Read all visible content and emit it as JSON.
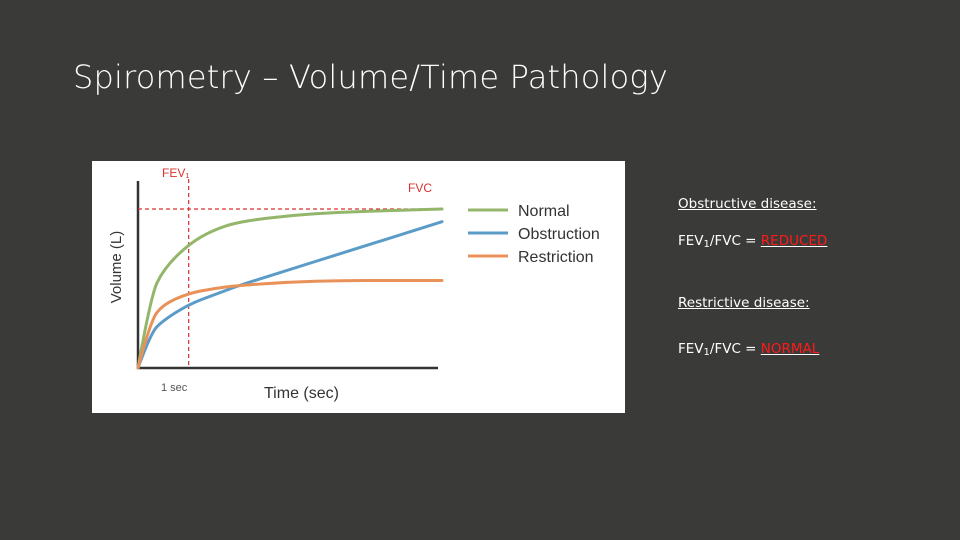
{
  "slide": {
    "title": "Spirometry – Volume/Time Pathology"
  },
  "notes": {
    "obstructive_heading": "Obstructive disease:",
    "obstructive_ratio_prefix": "FEV",
    "obstructive_ratio_sub": "1",
    "obstructive_ratio_mid": "/FVC = ",
    "obstructive_ratio_value": "REDUCED",
    "restrictive_heading": "Restrictive disease:",
    "restrictive_ratio_prefix": "FEV",
    "restrictive_ratio_sub": "1",
    "restrictive_ratio_mid": "/FVC = ",
    "restrictive_ratio_value": "NORMAL",
    "highlight_color": "#ff1a1a"
  },
  "chart_data": {
    "type": "line",
    "xlabel": "Time (sec)",
    "ylabel": "Volume (L)",
    "x_tick_label": "1 sec",
    "fev_label": "FEV₁",
    "fvc_label": "FVC",
    "ylim": [
      0,
      1
    ],
    "xlim": [
      0,
      6
    ],
    "fev1_time": 1,
    "fvc_level": 1,
    "series": [
      {
        "name": "Normal",
        "color": "#93b66a",
        "x": [
          0,
          0.25,
          0.5,
          1,
          1.5,
          2,
          3,
          4,
          5,
          6
        ],
        "y": [
          0,
          0.45,
          0.62,
          0.78,
          0.87,
          0.92,
          0.96,
          0.98,
          0.99,
          1.0
        ]
      },
      {
        "name": "Obstruction",
        "color": "#5b9bc8",
        "x": [
          0,
          0.25,
          0.5,
          1,
          1.5,
          2,
          3,
          4,
          5,
          6
        ],
        "y": [
          0,
          0.22,
          0.3,
          0.4,
          0.46,
          0.52,
          0.62,
          0.72,
          0.82,
          0.92
        ]
      },
      {
        "name": "Restriction",
        "color": "#e8925a",
        "x": [
          0,
          0.25,
          0.5,
          1,
          1.5,
          2,
          3,
          4,
          5,
          6
        ],
        "y": [
          0,
          0.3,
          0.4,
          0.47,
          0.5,
          0.52,
          0.54,
          0.55,
          0.55,
          0.55
        ]
      }
    ],
    "guide_color": "#d9312e",
    "legend_position": "right",
    "grid": false
  }
}
